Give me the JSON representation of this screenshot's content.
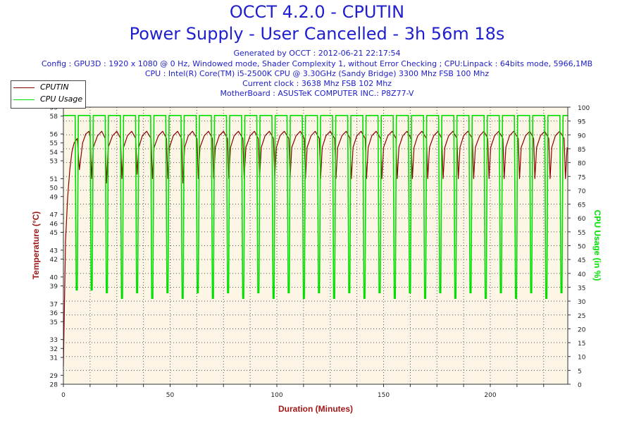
{
  "header": {
    "title_line1": "OCCT 4.2.0 - CPUTIN",
    "title_line2": "Power Supply - User Cancelled - 3h 56m 18s",
    "generated": "Generated by OCCT : 2012-06-21 22:17:54",
    "config": "Config : GPU3D : 1920 x 1080 @ 0 Hz, Windowed mode, Shader Complexity 1, without Error Checking ; CPU:Linpack : 64bits mode, 5966,1MB",
    "cpu": "CPU : Intel(R) Core(TM) i5-2500K CPU @ 3.30GHz (Sandy Bridge) 3300 Mhz FSB 100 Mhz",
    "clock": "Current clock : 3638 Mhz FSB 102 Mhz",
    "motherboard": "MotherBoard : ASUSTeK COMPUTER INC.: P8Z77-V"
  },
  "colors": {
    "temperature": "#8b0000",
    "cpu_usage": "#00e000",
    "plot_background": "#fdf6e6",
    "title": "#1f1fd0",
    "axis_label": "#a01818"
  },
  "chart_data": {
    "type": "line",
    "xlabel": "Duration (Minutes)",
    "ylabel_left": "Temperature (°C)",
    "ylabel_right": "CPU Usage (in %)",
    "xlim": [
      0,
      236.3
    ],
    "ylim_left": [
      28,
      59
    ],
    "ylim_right": [
      0,
      100
    ],
    "x_ticks": [
      0,
      50,
      100,
      150,
      200
    ],
    "y_ticks_left": [
      28,
      29,
      31,
      32,
      33,
      35,
      36,
      37,
      39,
      40,
      42,
      43,
      45,
      46,
      47,
      49,
      50,
      51,
      53,
      54,
      55,
      56,
      58,
      59
    ],
    "y_ticks_right": [
      0,
      5,
      10,
      15,
      20,
      25,
      30,
      35,
      40,
      45,
      50,
      55,
      60,
      65,
      70,
      75,
      80,
      85,
      90,
      95,
      100
    ],
    "grid": true,
    "legend_position": "top-left",
    "series": [
      {
        "name": "CPUTIN",
        "axis": "left",
        "x": [
          0,
          0.5,
          1,
          2,
          3,
          4,
          5,
          6.5,
          7.5,
          9,
          10.5,
          12,
          12.6,
          13.2,
          14,
          16,
          18,
          19.6,
          20.2,
          21,
          23,
          25,
          26.8,
          27.4,
          28.2,
          30,
          32,
          33.9,
          34.5,
          35.3,
          37,
          39,
          41.1,
          41.7,
          42.5,
          44.5,
          46.5,
          48.3,
          48.9,
          49.7,
          51.5,
          53.5,
          55.4,
          56,
          56.8,
          58.5,
          60.5,
          62.6,
          63.2,
          64,
          66,
          68,
          69.8,
          70.4,
          71.2,
          73,
          75,
          76.9,
          77.5,
          78.3,
          80,
          82,
          84.1,
          84.7,
          85.5,
          87.5,
          89.5,
          91.3,
          91.9,
          92.7,
          94.5,
          96.5,
          98.4,
          99,
          99.8,
          101.5,
          103.5,
          105.6,
          106.2,
          107,
          109,
          111,
          112.8,
          113.4,
          114.2,
          116,
          118,
          119.9,
          120.5,
          121.3,
          123,
          125,
          127.1,
          127.7,
          128.5,
          130.5,
          132.5,
          134.3,
          134.9,
          135.7,
          137.5,
          139.5,
          141.4,
          142,
          142.8,
          144.5,
          146.5,
          148.6,
          149.2,
          150,
          152,
          154,
          155.8,
          156.4,
          157.2,
          159,
          161,
          162.9,
          163.5,
          164.3,
          166,
          168,
          170.1,
          170.7,
          171.5,
          173.5,
          175.5,
          177.3,
          177.9,
          178.7,
          180.5,
          182.5,
          184.4,
          185,
          185.8,
          187.5,
          189.5,
          191.6,
          192.2,
          193,
          195,
          197,
          198.8,
          199.4,
          200.2,
          202,
          204,
          205.9,
          206.5,
          207.3,
          209,
          211,
          213.1,
          213.7,
          214.5,
          216.5,
          218.5,
          220.3,
          220.9,
          221.7,
          223.5,
          225.5,
          227.4,
          228,
          228.8,
          230.5,
          232.5,
          234.6,
          235.2,
          236
        ],
        "values": [
          30,
          37,
          44,
          49,
          52,
          54,
          55,
          55.5,
          52,
          55,
          56,
          56.3,
          55.5,
          51,
          54.5,
          55.8,
          56.3,
          55.5,
          50.5,
          54.5,
          55.8,
          56.3,
          55.5,
          51,
          54.5,
          55.8,
          56.3,
          55.5,
          51.5,
          54.5,
          55.8,
          56.3,
          55.5,
          51,
          54.5,
          55.8,
          56.3,
          55.5,
          51,
          54.5,
          55.8,
          56.3,
          55.5,
          50.5,
          54.5,
          55.8,
          56.3,
          55.5,
          51,
          54.5,
          55.8,
          56.3,
          55.5,
          51,
          54.5,
          55.8,
          56.3,
          55.5,
          51,
          54.5,
          55.8,
          56.3,
          55.5,
          51,
          54.5,
          55.8,
          56.3,
          55.5,
          51,
          54.5,
          55.8,
          56.3,
          55.5,
          51,
          54.5,
          55.8,
          56.3,
          55.5,
          51,
          54.5,
          55.8,
          56.3,
          55.5,
          51,
          54.5,
          55.8,
          56.3,
          55.5,
          51,
          54.5,
          55.8,
          56.3,
          55.5,
          51,
          54.5,
          55.8,
          56.3,
          55.5,
          51,
          54.5,
          55.8,
          56.3,
          55.5,
          51,
          54.5,
          55.8,
          56.3,
          55.5,
          51,
          54.5,
          55.8,
          56.3,
          55.5,
          51,
          54.5,
          55.8,
          56.3,
          55.5,
          51,
          54.5,
          55.8,
          56.3,
          55.5,
          51,
          54.5,
          55.8,
          56.3,
          55.5,
          51,
          54.5,
          55.8,
          56.3,
          55.5,
          51,
          54.5,
          55.8,
          56.3,
          55.5,
          51,
          54.5,
          55.8,
          56.3,
          55.5,
          51,
          54.5,
          55.8,
          56.3,
          55.5,
          51,
          54.5,
          55.8,
          56.3,
          55.5,
          51,
          54.5,
          55.8,
          56.3,
          55.5,
          51,
          54.5,
          55.8,
          56.3,
          55.5,
          51,
          54.5,
          55.8,
          56.3,
          55.5,
          51,
          54.5
        ]
      },
      {
        "name": "CPU Usage",
        "axis": "right",
        "x": [
          0,
          5.5,
          6,
          6.5,
          7,
          12.5,
          13,
          13.5,
          14,
          19.6,
          20.1,
          20.6,
          21.1,
          26.7,
          27.2,
          27.7,
          28.2,
          33.8,
          34.3,
          34.8,
          35.3,
          40.9,
          41.4,
          41.9,
          42.4,
          48,
          48.5,
          49,
          49.5,
          55.1,
          55.6,
          56.1,
          56.6,
          62.2,
          62.7,
          63.2,
          63.7,
          69.3,
          69.8,
          70.3,
          70.8,
          76.4,
          76.9,
          77.4,
          77.9,
          83.5,
          84,
          84.5,
          85,
          90.6,
          91.1,
          91.6,
          92.1,
          97.7,
          98.2,
          98.7,
          99.2,
          104.8,
          105.3,
          105.8,
          106.3,
          111.9,
          112.4,
          112.9,
          113.4,
          119,
          119.5,
          120,
          120.5,
          126.1,
          126.6,
          127.1,
          127.6,
          133.2,
          133.7,
          134.2,
          134.7,
          140.3,
          140.8,
          141.3,
          141.8,
          147.4,
          147.9,
          148.4,
          148.9,
          154.5,
          155,
          155.5,
          156,
          161.6,
          162.1,
          162.6,
          163.1,
          168.7,
          169.2,
          169.7,
          170.2,
          175.8,
          176.3,
          176.8,
          177.3,
          182.9,
          183.4,
          183.9,
          184.4,
          190,
          190.5,
          191,
          191.5,
          197.1,
          197.6,
          198.1,
          198.6,
          204.2,
          204.7,
          205.2,
          205.7,
          211.3,
          211.8,
          212.3,
          212.8,
          218.4,
          218.9,
          219.4,
          219.9,
          225.5,
          226,
          226.5,
          227,
          232.6,
          233.1,
          233.6,
          234.1,
          236.3
        ],
        "values": [
          97,
          97,
          34,
          34,
          97,
          97,
          34,
          34,
          97,
          97,
          33,
          33,
          97,
          97,
          31,
          31,
          97,
          97,
          33,
          33,
          97,
          97,
          31,
          31,
          97,
          97,
          33,
          33,
          97,
          97,
          31,
          31,
          97,
          97,
          33,
          33,
          97,
          97,
          31,
          31,
          97,
          97,
          33,
          33,
          97,
          97,
          31,
          31,
          97,
          97,
          33,
          33,
          97,
          97,
          31,
          31,
          97,
          97,
          33,
          33,
          97,
          97,
          31,
          31,
          97,
          97,
          33,
          33,
          97,
          97,
          31,
          31,
          97,
          97,
          33,
          33,
          97,
          97,
          31,
          31,
          97,
          97,
          33,
          33,
          97,
          97,
          31,
          31,
          97,
          97,
          33,
          33,
          97,
          97,
          31,
          31,
          97,
          97,
          33,
          33,
          97,
          97,
          31,
          31,
          97,
          97,
          33,
          33,
          97,
          97,
          31,
          31,
          97,
          97,
          33,
          33,
          97,
          97,
          31,
          31,
          97,
          97,
          33,
          33,
          97,
          97,
          31,
          31,
          97,
          97,
          33,
          33,
          97,
          97
        ]
      }
    ]
  }
}
